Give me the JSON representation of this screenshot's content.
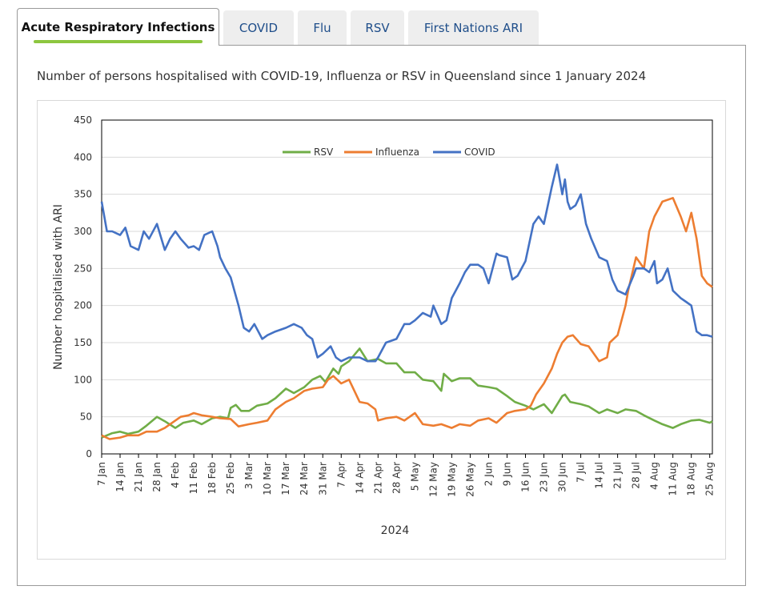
{
  "tabs": [
    {
      "label": "Acute Respiratory Infections",
      "active": true
    },
    {
      "label": "COVID",
      "active": false
    },
    {
      "label": "Flu",
      "active": false
    },
    {
      "label": "RSV",
      "active": false
    },
    {
      "label": "First Nations ARI",
      "active": false
    }
  ],
  "subtitle": "Number of persons hospitalised with COVID-19, Influenza or RSV in Queensland since 1 January 2024",
  "colors": {
    "rsv": "#70ad47",
    "influenza": "#ed7d31",
    "covid": "#4472c4",
    "active_tab_accent": "#8dc63f"
  },
  "chart_data": {
    "type": "line",
    "title": "",
    "xlabel": "2024",
    "ylabel": "Number hospitalised with ARI",
    "ylim": [
      0,
      450
    ],
    "yticks": [
      0,
      50,
      100,
      150,
      200,
      250,
      300,
      350,
      400,
      450
    ],
    "xlim_day": [
      0,
      232
    ],
    "grid": true,
    "legend_position": "top-center",
    "x_ticks": [
      {
        "day": 0,
        "label": "7 Jan"
      },
      {
        "day": 7,
        "label": "14 Jan"
      },
      {
        "day": 14,
        "label": "21 Jan"
      },
      {
        "day": 21,
        "label": "28 Jan"
      },
      {
        "day": 28,
        "label": "4 Feb"
      },
      {
        "day": 35,
        "label": "11 Feb"
      },
      {
        "day": 42,
        "label": "18 Feb"
      },
      {
        "day": 49,
        "label": "25 Feb"
      },
      {
        "day": 56,
        "label": "3 Mar"
      },
      {
        "day": 63,
        "label": "10 Mar"
      },
      {
        "day": 70,
        "label": "17 Mar"
      },
      {
        "day": 77,
        "label": "24 Mar"
      },
      {
        "day": 84,
        "label": "31 Mar"
      },
      {
        "day": 91,
        "label": "7 Apr"
      },
      {
        "day": 98,
        "label": "14 Apr"
      },
      {
        "day": 105,
        "label": "21 Apr"
      },
      {
        "day": 112,
        "label": "28 Apr"
      },
      {
        "day": 119,
        "label": "5 May"
      },
      {
        "day": 126,
        "label": "12 May"
      },
      {
        "day": 133,
        "label": "19 May"
      },
      {
        "day": 140,
        "label": "26 May"
      },
      {
        "day": 147,
        "label": "2 Jun"
      },
      {
        "day": 154,
        "label": "9 Jun"
      },
      {
        "day": 161,
        "label": "16 Jun"
      },
      {
        "day": 168,
        "label": "23 Jun"
      },
      {
        "day": 175,
        "label": "30 Jun"
      },
      {
        "day": 182,
        "label": "7 Jul"
      },
      {
        "day": 189,
        "label": "14 Jul"
      },
      {
        "day": 196,
        "label": "21 Jul"
      },
      {
        "day": 203,
        "label": "28 Jul"
      },
      {
        "day": 210,
        "label": "4 Aug"
      },
      {
        "day": 217,
        "label": "11 Aug"
      },
      {
        "day": 224,
        "label": "18 Aug"
      },
      {
        "day": 231,
        "label": "25 Aug"
      }
    ],
    "series": [
      {
        "name": "RSV",
        "color": "#70ad47",
        "x": [
          0,
          2,
          4,
          7,
          10,
          14,
          17,
          21,
          24,
          28,
          31,
          35,
          38,
          42,
          45,
          48,
          49,
          51,
          53,
          56,
          59,
          63,
          66,
          70,
          73,
          77,
          80,
          83,
          85,
          88,
          90,
          91,
          94,
          98,
          101,
          105,
          108,
          112,
          115,
          119,
          122,
          126,
          129,
          130,
          133,
          136,
          140,
          143,
          147,
          150,
          154,
          157,
          161,
          164,
          168,
          171,
          175,
          176,
          178,
          182,
          185,
          189,
          192,
          196,
          199,
          203,
          206,
          210,
          213,
          217,
          220,
          224,
          227,
          231,
          232
        ],
        "y": [
          22,
          25,
          28,
          30,
          27,
          30,
          38,
          50,
          44,
          35,
          42,
          45,
          40,
          48,
          50,
          48,
          62,
          66,
          58,
          58,
          65,
          68,
          75,
          88,
          82,
          90,
          100,
          105,
          97,
          115,
          108,
          118,
          125,
          142,
          125,
          128,
          122,
          122,
          110,
          110,
          100,
          98,
          85,
          108,
          98,
          102,
          102,
          92,
          90,
          88,
          78,
          70,
          65,
          60,
          67,
          55,
          78,
          80,
          70,
          67,
          64,
          55,
          60,
          55,
          60,
          58,
          52,
          45,
          40,
          35,
          40,
          45,
          46,
          42,
          44
        ]
      },
      {
        "name": "Influenza",
        "color": "#ed7d31",
        "x": [
          0,
          3,
          7,
          10,
          14,
          17,
          21,
          24,
          28,
          30,
          33,
          35,
          38,
          42,
          45,
          49,
          52,
          56,
          59,
          63,
          66,
          70,
          73,
          77,
          80,
          84,
          86,
          88,
          91,
          94,
          98,
          101,
          104,
          105,
          108,
          112,
          115,
          119,
          122,
          126,
          129,
          133,
          136,
          140,
          143,
          147,
          150,
          154,
          157,
          161,
          163,
          165,
          168,
          171,
          173,
          175,
          177,
          179,
          182,
          185,
          189,
          192,
          193,
          196,
          199,
          200,
          203,
          206,
          208,
          210,
          213,
          217,
          220,
          222,
          224,
          226,
          228,
          230,
          232
        ],
        "y": [
          25,
          20,
          22,
          25,
          25,
          30,
          30,
          35,
          45,
          50,
          52,
          55,
          52,
          50,
          48,
          47,
          37,
          40,
          42,
          45,
          60,
          70,
          75,
          85,
          88,
          90,
          100,
          105,
          95,
          100,
          70,
          68,
          60,
          45,
          48,
          50,
          45,
          55,
          40,
          38,
          40,
          35,
          40,
          38,
          45,
          48,
          42,
          55,
          58,
          60,
          65,
          80,
          95,
          115,
          135,
          150,
          158,
          160,
          148,
          145,
          125,
          130,
          150,
          160,
          200,
          220,
          265,
          250,
          300,
          320,
          340,
          345,
          320,
          300,
          325,
          290,
          240,
          230,
          225
        ]
      },
      {
        "name": "COVID",
        "color": "#4472c4",
        "x": [
          0,
          2,
          4,
          7,
          9,
          11,
          14,
          16,
          18,
          21,
          24,
          26,
          28,
          30,
          33,
          35,
          37,
          39,
          42,
          44,
          45,
          47,
          49,
          52,
          54,
          56,
          58,
          61,
          63,
          66,
          70,
          73,
          76,
          78,
          80,
          82,
          84,
          87,
          89,
          91,
          94,
          98,
          101,
          104,
          105,
          108,
          112,
          115,
          117,
          119,
          122,
          125,
          126,
          129,
          131,
          133,
          136,
          138,
          140,
          143,
          145,
          147,
          150,
          151,
          154,
          156,
          158,
          161,
          164,
          166,
          168,
          171,
          173,
          175,
          176,
          177,
          178,
          180,
          182,
          184,
          186,
          189,
          192,
          194,
          196,
          199,
          202,
          203,
          206,
          208,
          210,
          211,
          213,
          215,
          217,
          220,
          222,
          224,
          226,
          228,
          230,
          232
        ],
        "y": [
          340,
          300,
          300,
          295,
          305,
          280,
          275,
          300,
          290,
          310,
          275,
          290,
          300,
          290,
          278,
          280,
          275,
          295,
          300,
          280,
          265,
          250,
          238,
          200,
          170,
          165,
          175,
          155,
          160,
          165,
          170,
          175,
          170,
          160,
          155,
          130,
          135,
          145,
          130,
          125,
          130,
          130,
          125,
          125,
          130,
          150,
          155,
          175,
          175,
          180,
          190,
          185,
          200,
          175,
          180,
          210,
          230,
          245,
          255,
          255,
          250,
          230,
          270,
          268,
          265,
          235,
          240,
          260,
          310,
          320,
          310,
          360,
          390,
          350,
          370,
          340,
          330,
          335,
          350,
          310,
          290,
          265,
          260,
          235,
          220,
          215,
          240,
          250,
          250,
          245,
          260,
          230,
          235,
          250,
          220,
          210,
          205,
          200,
          165,
          160,
          160,
          158
        ]
      }
    ]
  }
}
